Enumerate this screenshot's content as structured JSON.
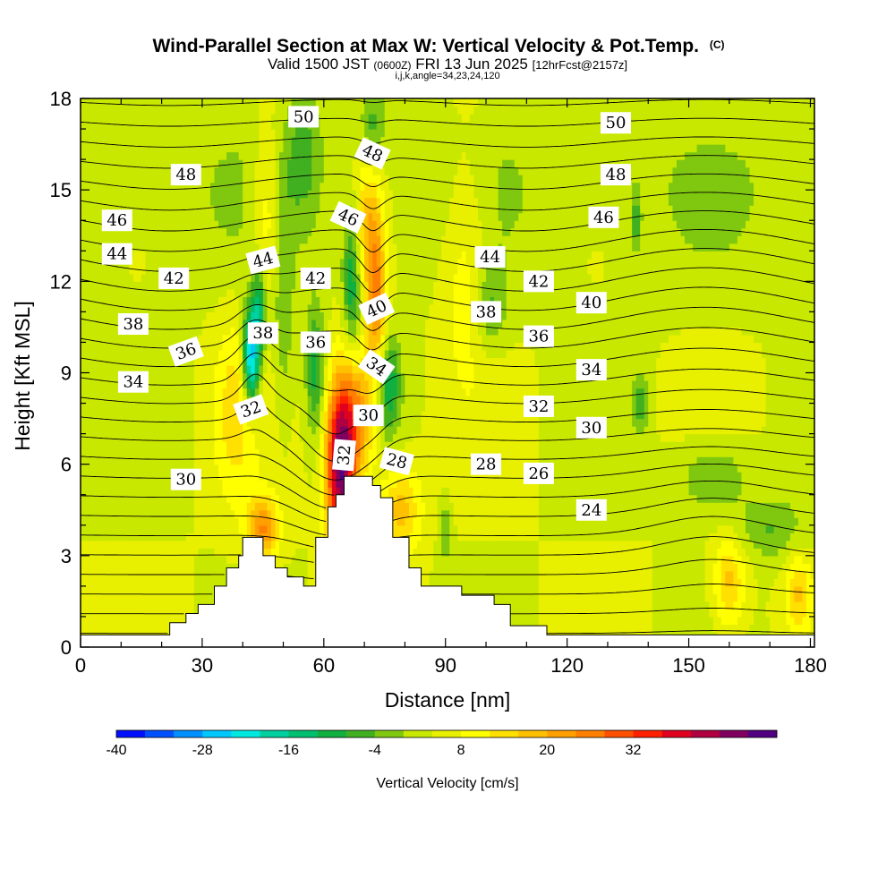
{
  "title": {
    "main": "Wind-Parallel Section at Max W: Vertical Velocity & Pot.Temp.",
    "copyright": "(C)",
    "valid_prefix": "Valid 1500 JST",
    "valid_utc": "(0600Z)",
    "valid_date": "FRI 13 Jun 2025",
    "forecast": "[12hrFcst@2157z]",
    "indices": "i,j,k,angle=34,23,24,120"
  },
  "chart_data": {
    "type": "heatmap",
    "title": "Wind-Parallel Section at Max W: Vertical Velocity & Pot.Temp.",
    "xlabel": "Distance [nm]",
    "ylabel": "Height [Kft MSL]",
    "xlim": [
      0,
      181
    ],
    "ylim": [
      0,
      18
    ],
    "x_ticks": [
      "0",
      "30",
      "60",
      "90",
      "120",
      "150",
      "180"
    ],
    "y_ticks": [
      "0",
      "3",
      "6",
      "9",
      "12",
      "15",
      "18"
    ],
    "colorbar": {
      "label": "Vertical Velocity [cm/s]",
      "tick_labels": [
        "-40",
        "-28",
        "-16",
        "-4",
        "8",
        "20",
        "32"
      ],
      "colors": [
        "#0010ff",
        "#0050ff",
        "#0090ff",
        "#00c8ff",
        "#00e8e0",
        "#00d0a0",
        "#00c070",
        "#10b040",
        "#40b020",
        "#80c810",
        "#c8e800",
        "#e8f000",
        "#ffff00",
        "#ffe000",
        "#ffc000",
        "#ffa000",
        "#ff8000",
        "#ff5000",
        "#ff2000",
        "#e00020",
        "#b00040",
        "#800060",
        "#500080"
      ]
    },
    "contour_field": "Potential Temperature",
    "contour_labels": [
      {
        "text": "50",
        "x": 55,
        "y": 17.4,
        "angle": 0
      },
      {
        "text": "50",
        "x": 132,
        "y": 17.2,
        "angle": 0
      },
      {
        "text": "48",
        "x": 26,
        "y": 15.5,
        "angle": 0
      },
      {
        "text": "48",
        "x": 72,
        "y": 16.2,
        "angle": 25
      },
      {
        "text": "48",
        "x": 132,
        "y": 15.5,
        "angle": 0
      },
      {
        "text": "46",
        "x": 9,
        "y": 14.0,
        "angle": 0
      },
      {
        "text": "46",
        "x": 66,
        "y": 14.1,
        "angle": 25
      },
      {
        "text": "46",
        "x": 129,
        "y": 14.1,
        "angle": 0
      },
      {
        "text": "44",
        "x": 9,
        "y": 12.9,
        "angle": 0
      },
      {
        "text": "44",
        "x": 45,
        "y": 12.7,
        "angle": -15
      },
      {
        "text": "44",
        "x": 101,
        "y": 12.8,
        "angle": 0
      },
      {
        "text": "42",
        "x": 23,
        "y": 12.1,
        "angle": 0
      },
      {
        "text": "42",
        "x": 58,
        "y": 12.1,
        "angle": 0
      },
      {
        "text": "42",
        "x": 113,
        "y": 12.0,
        "angle": 0
      },
      {
        "text": "40",
        "x": 73,
        "y": 11.1,
        "angle": -25
      },
      {
        "text": "40",
        "x": 126,
        "y": 11.3,
        "angle": 0
      },
      {
        "text": "38",
        "x": 13,
        "y": 10.6,
        "angle": 0
      },
      {
        "text": "38",
        "x": 45,
        "y": 10.3,
        "angle": 0
      },
      {
        "text": "38",
        "x": 100,
        "y": 11.0,
        "angle": 0
      },
      {
        "text": "36",
        "x": 26,
        "y": 9.7,
        "angle": -20
      },
      {
        "text": "36",
        "x": 58,
        "y": 10.0,
        "angle": 0
      },
      {
        "text": "36",
        "x": 113,
        "y": 10.2,
        "angle": 0
      },
      {
        "text": "34",
        "x": 13,
        "y": 8.7,
        "angle": 0
      },
      {
        "text": "34",
        "x": 73,
        "y": 9.2,
        "angle": 35
      },
      {
        "text": "34",
        "x": 126,
        "y": 9.1,
        "angle": 0
      },
      {
        "text": "32",
        "x": 42,
        "y": 7.8,
        "angle": -20
      },
      {
        "text": "32",
        "x": 65,
        "y": 6.3,
        "angle": -85
      },
      {
        "text": "32",
        "x": 113,
        "y": 7.9,
        "angle": 0
      },
      {
        "text": "30",
        "x": 26,
        "y": 5.5,
        "angle": 0
      },
      {
        "text": "30",
        "x": 71,
        "y": 7.6,
        "angle": 0
      },
      {
        "text": "30",
        "x": 126,
        "y": 7.2,
        "angle": 0
      },
      {
        "text": "28",
        "x": 78,
        "y": 6.1,
        "angle": 15
      },
      {
        "text": "28",
        "x": 100,
        "y": 6.0,
        "angle": 0
      },
      {
        "text": "26",
        "x": 113,
        "y": 5.7,
        "angle": 0
      },
      {
        "text": "24",
        "x": 126,
        "y": 4.5,
        "angle": 0
      }
    ],
    "terrain": [
      [
        0,
        0.4
      ],
      [
        22,
        0.4
      ],
      [
        22,
        0.8
      ],
      [
        26,
        0.8
      ],
      [
        26,
        1.1
      ],
      [
        29,
        1.1
      ],
      [
        29,
        1.4
      ],
      [
        33,
        1.4
      ],
      [
        33,
        2.0
      ],
      [
        36,
        2.0
      ],
      [
        36,
        2.6
      ],
      [
        39,
        2.6
      ],
      [
        39,
        3.0
      ],
      [
        40,
        3.0
      ],
      [
        40,
        3.6
      ],
      [
        45,
        3.6
      ],
      [
        45,
        3.0
      ],
      [
        48,
        3.0
      ],
      [
        48,
        2.6
      ],
      [
        51,
        2.6
      ],
      [
        51,
        2.3
      ],
      [
        55,
        2.3
      ],
      [
        55,
        2.0
      ],
      [
        58,
        2.0
      ],
      [
        58,
        3.6
      ],
      [
        61,
        3.6
      ],
      [
        61,
        4.6
      ],
      [
        63,
        4.6
      ],
      [
        63,
        5.0
      ],
      [
        65,
        5.0
      ],
      [
        65,
        5.6
      ],
      [
        72,
        5.6
      ],
      [
        72,
        5.3
      ],
      [
        74,
        5.3
      ],
      [
        74,
        4.9
      ],
      [
        77,
        4.9
      ],
      [
        77,
        3.6
      ],
      [
        81,
        3.6
      ],
      [
        81,
        2.6
      ],
      [
        84,
        2.6
      ],
      [
        84,
        2.0
      ],
      [
        94,
        2.0
      ],
      [
        94,
        1.7
      ],
      [
        102,
        1.7
      ],
      [
        102,
        1.4
      ],
      [
        106,
        1.4
      ],
      [
        106,
        0.7
      ],
      [
        115,
        0.7
      ],
      [
        115,
        0.4
      ],
      [
        181,
        0.4
      ]
    ],
    "uplift_cores": [
      {
        "x": 64,
        "y": 5.5,
        "rx": 3.5,
        "ry": 2.6,
        "w": 38
      },
      {
        "x": 67,
        "y": 7.6,
        "rx": 5.5,
        "ry": 2.2,
        "w": 24
      },
      {
        "x": 73,
        "y": 11.3,
        "rx": 2.4,
        "ry": 2.3,
        "w": 20
      },
      {
        "x": 71,
        "y": 14.0,
        "rx": 3.5,
        "ry": 2.4,
        "w": 14
      },
      {
        "x": 45,
        "y": 3.9,
        "rx": 4.0,
        "ry": 1.0,
        "w": 20
      },
      {
        "x": 38,
        "y": 7.8,
        "rx": 5.0,
        "ry": 3.0,
        "w": 9
      },
      {
        "x": 46,
        "y": 14.2,
        "rx": 4.0,
        "ry": 3.0,
        "w": 10
      },
      {
        "x": 79,
        "y": 4.5,
        "rx": 5.0,
        "ry": 1.5,
        "w": 14
      },
      {
        "x": 95,
        "y": 13.0,
        "rx": 6.0,
        "ry": 4.0,
        "w": 8
      },
      {
        "x": 160,
        "y": 2.1,
        "rx": 4.0,
        "ry": 1.5,
        "w": 14
      },
      {
        "x": 177,
        "y": 1.8,
        "rx": 3.0,
        "ry": 1.2,
        "w": 12
      }
    ],
    "sink_cores": [
      {
        "x": 42,
        "y": 9.5,
        "rx": 2.0,
        "ry": 1.6,
        "w": -32
      },
      {
        "x": 44,
        "y": 11.0,
        "rx": 1.8,
        "ry": 1.5,
        "w": -18
      },
      {
        "x": 50,
        "y": 11.5,
        "rx": 2.5,
        "ry": 4.0,
        "w": -8
      },
      {
        "x": 58,
        "y": 9.0,
        "rx": 2.4,
        "ry": 2.2,
        "w": -14
      },
      {
        "x": 67,
        "y": 12.0,
        "rx": 2.2,
        "ry": 2.5,
        "w": -16
      },
      {
        "x": 76,
        "y": 8.6,
        "rx": 2.8,
        "ry": 1.6,
        "w": -16
      },
      {
        "x": 72,
        "y": 17.0,
        "rx": 3.0,
        "ry": 1.4,
        "w": -10
      },
      {
        "x": 55,
        "y": 16.3,
        "rx": 4.0,
        "ry": 2.2,
        "w": -8
      },
      {
        "x": 101,
        "y": 11.2,
        "rx": 4.0,
        "ry": 1.5,
        "w": -9
      },
      {
        "x": 137,
        "y": 14.0,
        "rx": 1.2,
        "ry": 1.0,
        "w": -10
      },
      {
        "x": 138,
        "y": 8.0,
        "rx": 2.0,
        "ry": 1.0,
        "w": -10
      },
      {
        "x": 156,
        "y": 5.6,
        "rx": 9.0,
        "ry": 1.3,
        "w": -9
      },
      {
        "x": 170,
        "y": 3.9,
        "rx": 8.0,
        "ry": 1.0,
        "w": -8
      },
      {
        "x": 90,
        "y": 3.8,
        "rx": 1.5,
        "ry": 1.0,
        "w": -8
      }
    ]
  }
}
